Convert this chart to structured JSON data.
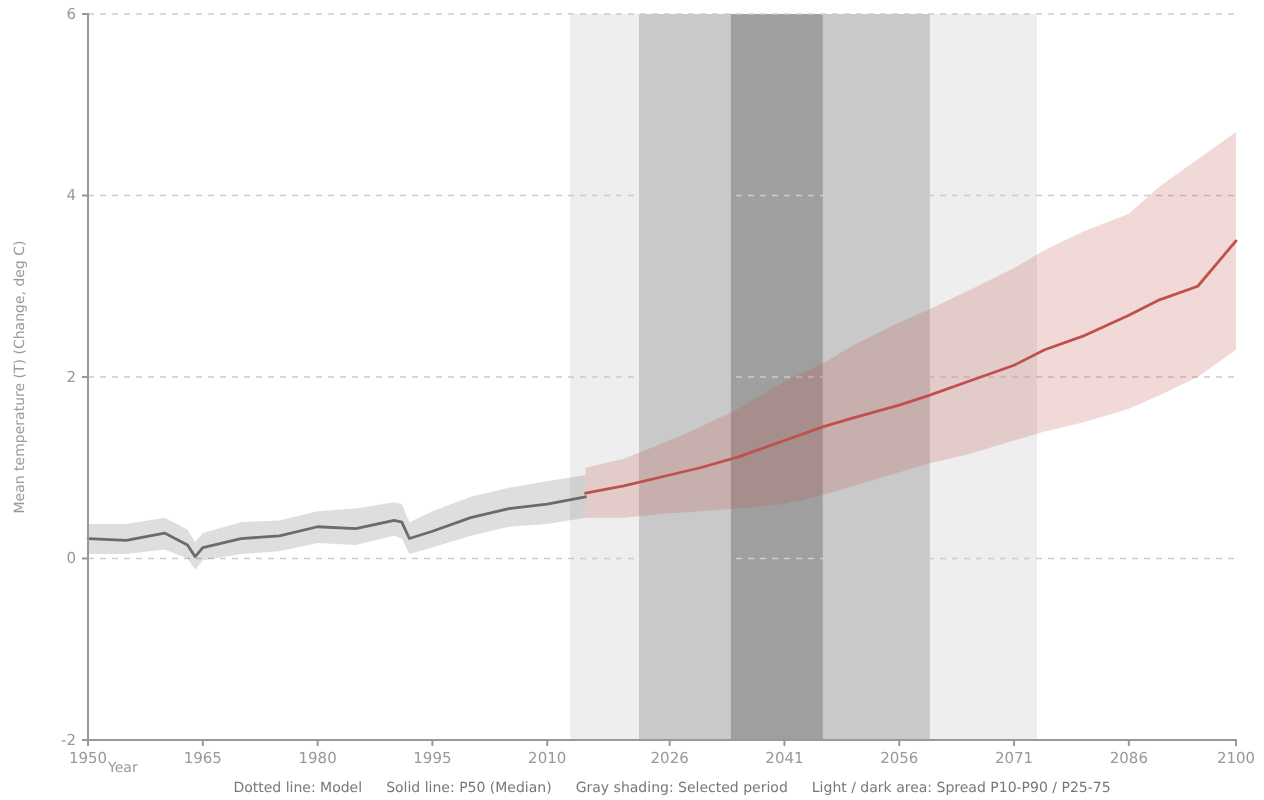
{
  "chart_data": {
    "type": "line",
    "xlabel": "Year",
    "ylabel": "Mean temperature (T) (Change, deg C)",
    "xlim": [
      1950,
      2100
    ],
    "xticks": [
      1950,
      1965,
      1980,
      1995,
      2010,
      2026,
      2041,
      2056,
      2071,
      2086,
      2100
    ],
    "ylim": [
      -2,
      6
    ],
    "yticks": [
      -2,
      0,
      2,
      4,
      6
    ],
    "grid": "y",
    "line_style": "solid",
    "marker": "none",
    "bands": [
      {
        "axis": "x",
        "from": 2013,
        "to": 2074,
        "color": "#ececec"
      },
      {
        "axis": "x",
        "from": 2022,
        "to": 2060,
        "color": "#c4c4c4"
      },
      {
        "axis": "x",
        "from": 2034,
        "to": 2046,
        "color": "#9a9a9a"
      }
    ],
    "series": [
      {
        "color": "#6b6b6b",
        "x": [
          1950,
          1955,
          1960,
          1963,
          1964,
          1965,
          1970,
          1975,
          1980,
          1985,
          1990,
          1991,
          1992,
          1995,
          2000,
          2005,
          2010,
          2015
        ],
        "values": [
          0.22,
          0.2,
          0.28,
          0.15,
          0.02,
          0.12,
          0.22,
          0.25,
          0.35,
          0.33,
          0.42,
          0.4,
          0.22,
          0.3,
          0.45,
          0.55,
          0.6,
          0.68
        ],
        "lower": [
          0.05,
          0.05,
          0.1,
          0,
          -0.12,
          -0.02,
          0.05,
          0.08,
          0.17,
          0.15,
          0.25,
          0.22,
          0.05,
          0.12,
          0.25,
          0.35,
          0.38,
          0.45
        ],
        "upper": [
          0.38,
          0.38,
          0.45,
          0.32,
          0.18,
          0.28,
          0.4,
          0.42,
          0.52,
          0.55,
          0.62,
          0.6,
          0.4,
          0.52,
          0.68,
          0.78,
          0.85,
          0.92
        ]
      },
      {
        "color": "#c0504d",
        "x": [
          2015,
          2020,
          2026,
          2030,
          2035,
          2041,
          2046,
          2050,
          2056,
          2060,
          2065,
          2071,
          2075,
          2080,
          2086,
          2090,
          2095,
          2100
        ],
        "values": [
          0.72,
          0.8,
          0.92,
          1.0,
          1.12,
          1.3,
          1.45,
          1.55,
          1.69,
          1.8,
          1.95,
          2.13,
          2.3,
          2.45,
          2.68,
          2.85,
          3.0,
          3.5
        ],
        "lower": [
          0.45,
          0.45,
          0.5,
          0.52,
          0.55,
          0.6,
          0.7,
          0.8,
          0.95,
          1.05,
          1.15,
          1.3,
          1.4,
          1.5,
          1.65,
          1.8,
          2.0,
          2.3
        ],
        "upper": [
          1.0,
          1.1,
          1.3,
          1.45,
          1.65,
          1.95,
          2.15,
          2.35,
          2.6,
          2.75,
          2.95,
          3.2,
          3.4,
          3.6,
          3.8,
          4.1,
          4.4,
          4.7
        ]
      }
    ],
    "annotations": [
      "Dotted line: Model",
      "Solid line: P50 (Median)",
      "Gray shading: Selected period",
      "Light / dark area: Spread P10-P90 / P25-75"
    ]
  }
}
